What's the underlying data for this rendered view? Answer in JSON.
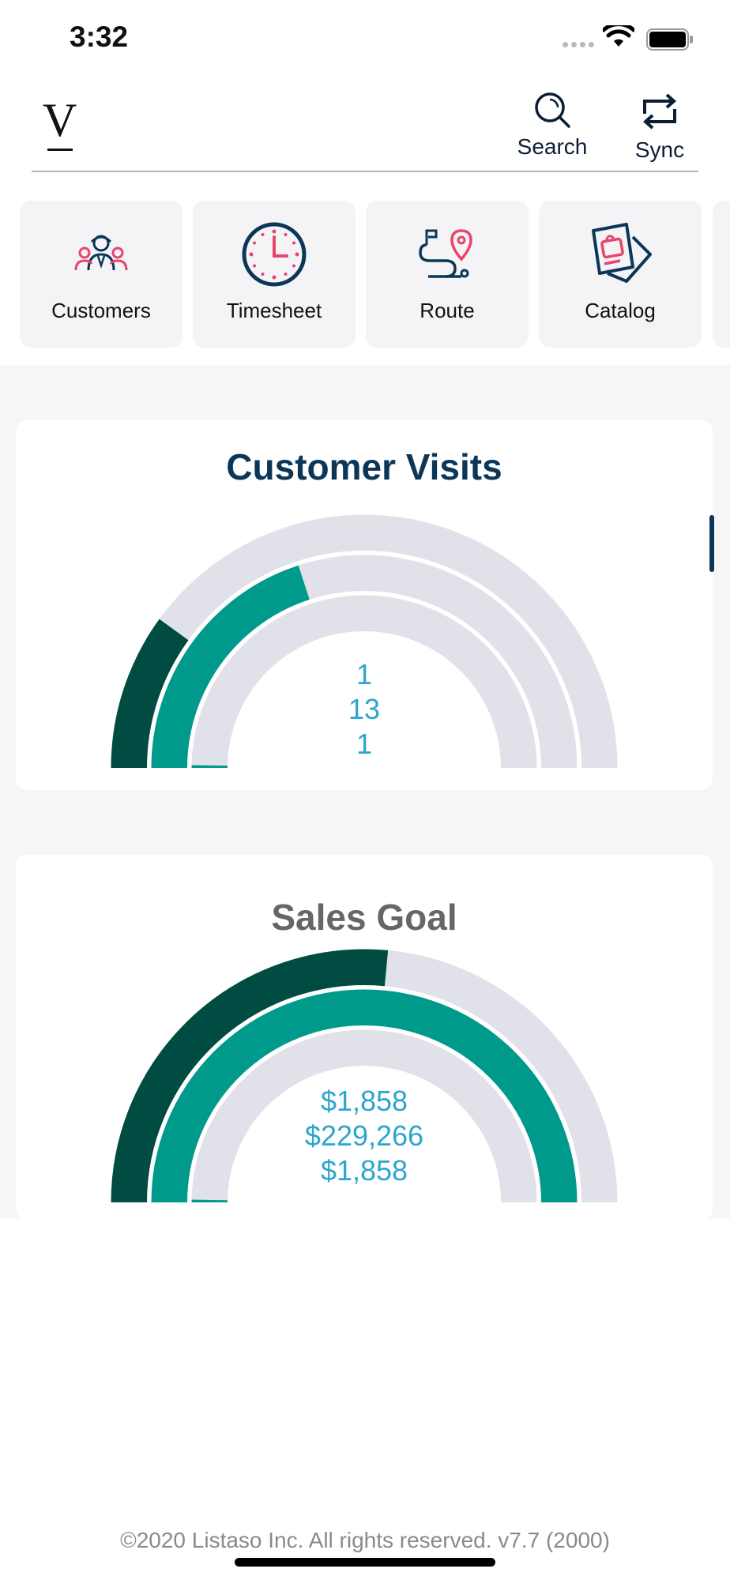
{
  "status_bar": {
    "time": "3:32"
  },
  "header": {
    "logo": "V",
    "search_label": "Search",
    "sync_label": "Sync"
  },
  "tiles": [
    {
      "label": "Customers",
      "icon": "customers-icon"
    },
    {
      "label": "Timesheet",
      "icon": "clock-icon"
    },
    {
      "label": "Route",
      "icon": "route-icon"
    },
    {
      "label": "Catalog",
      "icon": "catalog-icon"
    }
  ],
  "colors": {
    "dark_green": "#004c42",
    "teal": "#009a8c",
    "track": "#e1e1ea",
    "value_text": "#2da6cc",
    "navy": "#0c3658",
    "accent_pink": "#e8456e"
  },
  "visits": {
    "title": "Customer Visits",
    "values": [
      "1",
      "13",
      "1"
    ],
    "rings": [
      {
        "fraction": 0.2
      },
      {
        "fraction": 0.4
      },
      {
        "fraction": 0.005
      }
    ]
  },
  "sales": {
    "title": "Sales Goal",
    "values": [
      "$1,858",
      "$229,266",
      "$1,858"
    ],
    "rings": [
      {
        "fraction": 0.53
      },
      {
        "fraction": 1.0
      },
      {
        "fraction": 0.005
      }
    ]
  },
  "footer": {
    "text": "©2020 Listaso Inc. All rights reserved.  v7.7 (2000)"
  }
}
